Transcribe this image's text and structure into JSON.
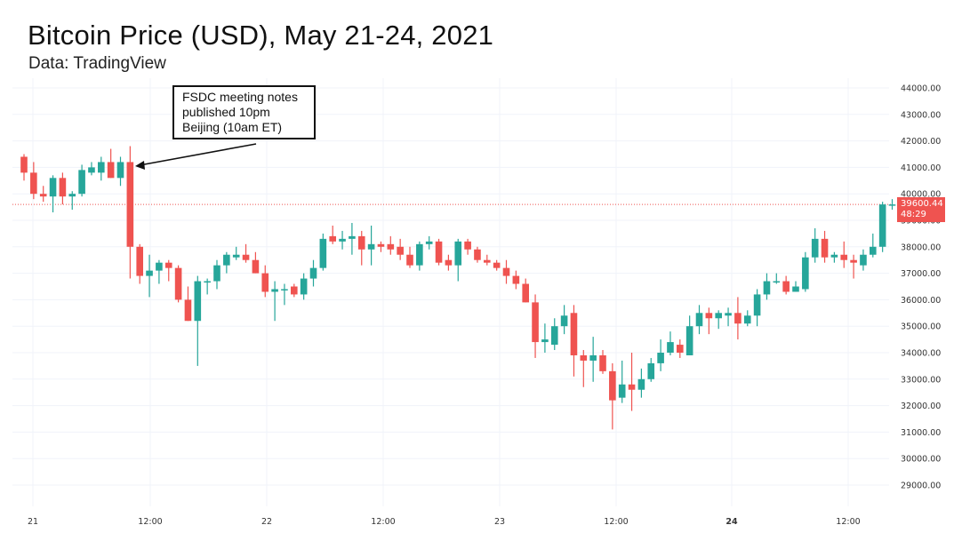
{
  "title": "Bitcoin Price (USD), May 21-24, 2021",
  "subtitle": "Data: TradingView",
  "annotation": "FSDC meeting notes published 10pm Beijing (10am ET)",
  "last_price": "39600.44",
  "countdown": "48:29",
  "colors": {
    "up": "#26a69a",
    "down": "#ef5350",
    "grid": "#f0f3fa",
    "axis_text": "#333333"
  },
  "chart_data": {
    "type": "candlestick",
    "title": "Bitcoin Price (USD), May 21-24, 2021",
    "ylim": [
      28500,
      44500
    ],
    "y_ticks": [
      "44000.00",
      "43000.00",
      "42000.00",
      "41000.00",
      "40000.00",
      "39000.00",
      "38000.00",
      "37000.00",
      "36000.00",
      "35000.00",
      "34000.00",
      "33000.00",
      "32000.00",
      "31000.00",
      "30000.00",
      "29000.00"
    ],
    "x_ticks": [
      "21",
      "12:00",
      "22",
      "12:00",
      "23",
      "12:00",
      "24",
      "12:00"
    ],
    "bold_x_ticks": [
      "24"
    ],
    "grid": true,
    "candles": [
      {
        "o": 41400,
        "h": 41500,
        "l": 40500,
        "c": 40800
      },
      {
        "o": 40800,
        "h": 41200,
        "l": 39800,
        "c": 40000
      },
      {
        "o": 40000,
        "h": 40300,
        "l": 39700,
        "c": 39900
      },
      {
        "o": 39900,
        "h": 40700,
        "l": 39300,
        "c": 40600
      },
      {
        "o": 40600,
        "h": 40800,
        "l": 39600,
        "c": 39900
      },
      {
        "o": 39900,
        "h": 40100,
        "l": 39400,
        "c": 40000
      },
      {
        "o": 40000,
        "h": 41100,
        "l": 39900,
        "c": 40900
      },
      {
        "o": 40800,
        "h": 41200,
        "l": 40700,
        "c": 41000
      },
      {
        "o": 40800,
        "h": 41400,
        "l": 40500,
        "c": 41200
      },
      {
        "o": 41200,
        "h": 41700,
        "l": 40600,
        "c": 40600
      },
      {
        "o": 40600,
        "h": 41400,
        "l": 40300,
        "c": 41200
      },
      {
        "o": 41200,
        "h": 41800,
        "l": 36800,
        "c": 38000
      },
      {
        "o": 38000,
        "h": 38100,
        "l": 36600,
        "c": 36900
      },
      {
        "o": 36900,
        "h": 37700,
        "l": 36100,
        "c": 37100
      },
      {
        "o": 37100,
        "h": 37500,
        "l": 36600,
        "c": 37400
      },
      {
        "o": 37400,
        "h": 37500,
        "l": 36700,
        "c": 37200
      },
      {
        "o": 37200,
        "h": 37300,
        "l": 35900,
        "c": 36000
      },
      {
        "o": 36000,
        "h": 36500,
        "l": 35200,
        "c": 35200
      },
      {
        "o": 35200,
        "h": 36900,
        "l": 33500,
        "c": 36700
      },
      {
        "o": 36700,
        "h": 36800,
        "l": 36200,
        "c": 36700
      },
      {
        "o": 36700,
        "h": 37500,
        "l": 36400,
        "c": 37300
      },
      {
        "o": 37300,
        "h": 37800,
        "l": 37000,
        "c": 37700
      },
      {
        "o": 37600,
        "h": 38000,
        "l": 37500,
        "c": 37700
      },
      {
        "o": 37700,
        "h": 38100,
        "l": 37400,
        "c": 37500
      },
      {
        "o": 37500,
        "h": 37800,
        "l": 37000,
        "c": 37000
      },
      {
        "o": 37000,
        "h": 37300,
        "l": 36100,
        "c": 36300
      },
      {
        "o": 36300,
        "h": 36700,
        "l": 35200,
        "c": 36400
      },
      {
        "o": 36400,
        "h": 36600,
        "l": 35800,
        "c": 36400
      },
      {
        "o": 36500,
        "h": 36600,
        "l": 36100,
        "c": 36200
      },
      {
        "o": 36200,
        "h": 37000,
        "l": 36000,
        "c": 36800
      },
      {
        "o": 36800,
        "h": 37500,
        "l": 36500,
        "c": 37200
      },
      {
        "o": 37200,
        "h": 38500,
        "l": 37100,
        "c": 38300
      },
      {
        "o": 38400,
        "h": 38800,
        "l": 38100,
        "c": 38200
      },
      {
        "o": 38200,
        "h": 38600,
        "l": 37900,
        "c": 38300
      },
      {
        "o": 38300,
        "h": 38900,
        "l": 37700,
        "c": 38400
      },
      {
        "o": 38400,
        "h": 38600,
        "l": 37300,
        "c": 37900
      },
      {
        "o": 37900,
        "h": 38800,
        "l": 37300,
        "c": 38100
      },
      {
        "o": 38100,
        "h": 38200,
        "l": 37800,
        "c": 38000
      },
      {
        "o": 38100,
        "h": 38400,
        "l": 37700,
        "c": 37900
      },
      {
        "o": 38000,
        "h": 38300,
        "l": 37500,
        "c": 37700
      },
      {
        "o": 37700,
        "h": 38000,
        "l": 37200,
        "c": 37300
      },
      {
        "o": 37300,
        "h": 38200,
        "l": 37100,
        "c": 38100
      },
      {
        "o": 38100,
        "h": 38400,
        "l": 37900,
        "c": 38200
      },
      {
        "o": 38200,
        "h": 38300,
        "l": 37300,
        "c": 37400
      },
      {
        "o": 37500,
        "h": 37700,
        "l": 37100,
        "c": 37300
      },
      {
        "o": 37300,
        "h": 38300,
        "l": 36700,
        "c": 38200
      },
      {
        "o": 38200,
        "h": 38300,
        "l": 37700,
        "c": 37900
      },
      {
        "o": 37900,
        "h": 38000,
        "l": 37400,
        "c": 37500
      },
      {
        "o": 37500,
        "h": 37700,
        "l": 37300,
        "c": 37400
      },
      {
        "o": 37400,
        "h": 37500,
        "l": 37100,
        "c": 37200
      },
      {
        "o": 37200,
        "h": 37500,
        "l": 36600,
        "c": 36900
      },
      {
        "o": 36900,
        "h": 37100,
        "l": 36400,
        "c": 36600
      },
      {
        "o": 36600,
        "h": 36800,
        "l": 35900,
        "c": 35900
      },
      {
        "o": 35900,
        "h": 36200,
        "l": 33800,
        "c": 34400
      },
      {
        "o": 34400,
        "h": 35100,
        "l": 34000,
        "c": 34500
      },
      {
        "o": 34300,
        "h": 35300,
        "l": 34100,
        "c": 35000
      },
      {
        "o": 35000,
        "h": 35800,
        "l": 34700,
        "c": 35400
      },
      {
        "o": 35500,
        "h": 35800,
        "l": 33100,
        "c": 33900
      },
      {
        "o": 33900,
        "h": 34100,
        "l": 32700,
        "c": 33700
      },
      {
        "o": 33700,
        "h": 34600,
        "l": 32900,
        "c": 33900
      },
      {
        "o": 33900,
        "h": 34100,
        "l": 33200,
        "c": 33300
      },
      {
        "o": 33300,
        "h": 33600,
        "l": 31100,
        "c": 32200
      },
      {
        "o": 32300,
        "h": 33700,
        "l": 32100,
        "c": 32800
      },
      {
        "o": 32800,
        "h": 34000,
        "l": 31800,
        "c": 32600
      },
      {
        "o": 32600,
        "h": 33400,
        "l": 32300,
        "c": 33000
      },
      {
        "o": 33000,
        "h": 33800,
        "l": 32900,
        "c": 33600
      },
      {
        "o": 33600,
        "h": 34500,
        "l": 33300,
        "c": 34000
      },
      {
        "o": 34000,
        "h": 34800,
        "l": 33900,
        "c": 34400
      },
      {
        "o": 34300,
        "h": 34500,
        "l": 33800,
        "c": 34000
      },
      {
        "o": 33900,
        "h": 35400,
        "l": 33900,
        "c": 35000
      },
      {
        "o": 35000,
        "h": 35800,
        "l": 34700,
        "c": 35500
      },
      {
        "o": 35500,
        "h": 35700,
        "l": 34700,
        "c": 35300
      },
      {
        "o": 35300,
        "h": 35600,
        "l": 34900,
        "c": 35500
      },
      {
        "o": 35400,
        "h": 35700,
        "l": 35000,
        "c": 35500
      },
      {
        "o": 35500,
        "h": 36100,
        "l": 34500,
        "c": 35100
      },
      {
        "o": 35100,
        "h": 35600,
        "l": 35000,
        "c": 35400
      },
      {
        "o": 35400,
        "h": 36400,
        "l": 35000,
        "c": 36200
      },
      {
        "o": 36200,
        "h": 37000,
        "l": 36000,
        "c": 36700
      },
      {
        "o": 36700,
        "h": 37000,
        "l": 36600,
        "c": 36700
      },
      {
        "o": 36700,
        "h": 36900,
        "l": 36200,
        "c": 36300
      },
      {
        "o": 36300,
        "h": 36700,
        "l": 36300,
        "c": 36500
      },
      {
        "o": 36400,
        "h": 37800,
        "l": 36300,
        "c": 37600
      },
      {
        "o": 37600,
        "h": 38700,
        "l": 37400,
        "c": 38300
      },
      {
        "o": 38300,
        "h": 38600,
        "l": 37400,
        "c": 37600
      },
      {
        "o": 37600,
        "h": 37800,
        "l": 37400,
        "c": 37700
      },
      {
        "o": 37700,
        "h": 38200,
        "l": 37200,
        "c": 37500
      },
      {
        "o": 37500,
        "h": 37700,
        "l": 36800,
        "c": 37400
      },
      {
        "o": 37300,
        "h": 37900,
        "l": 37100,
        "c": 37700
      },
      {
        "o": 37700,
        "h": 38500,
        "l": 37600,
        "c": 38000
      },
      {
        "o": 38000,
        "h": 39700,
        "l": 37800,
        "c": 39600
      },
      {
        "o": 39600,
        "h": 39800,
        "l": 39400,
        "c": 39600
      }
    ]
  }
}
